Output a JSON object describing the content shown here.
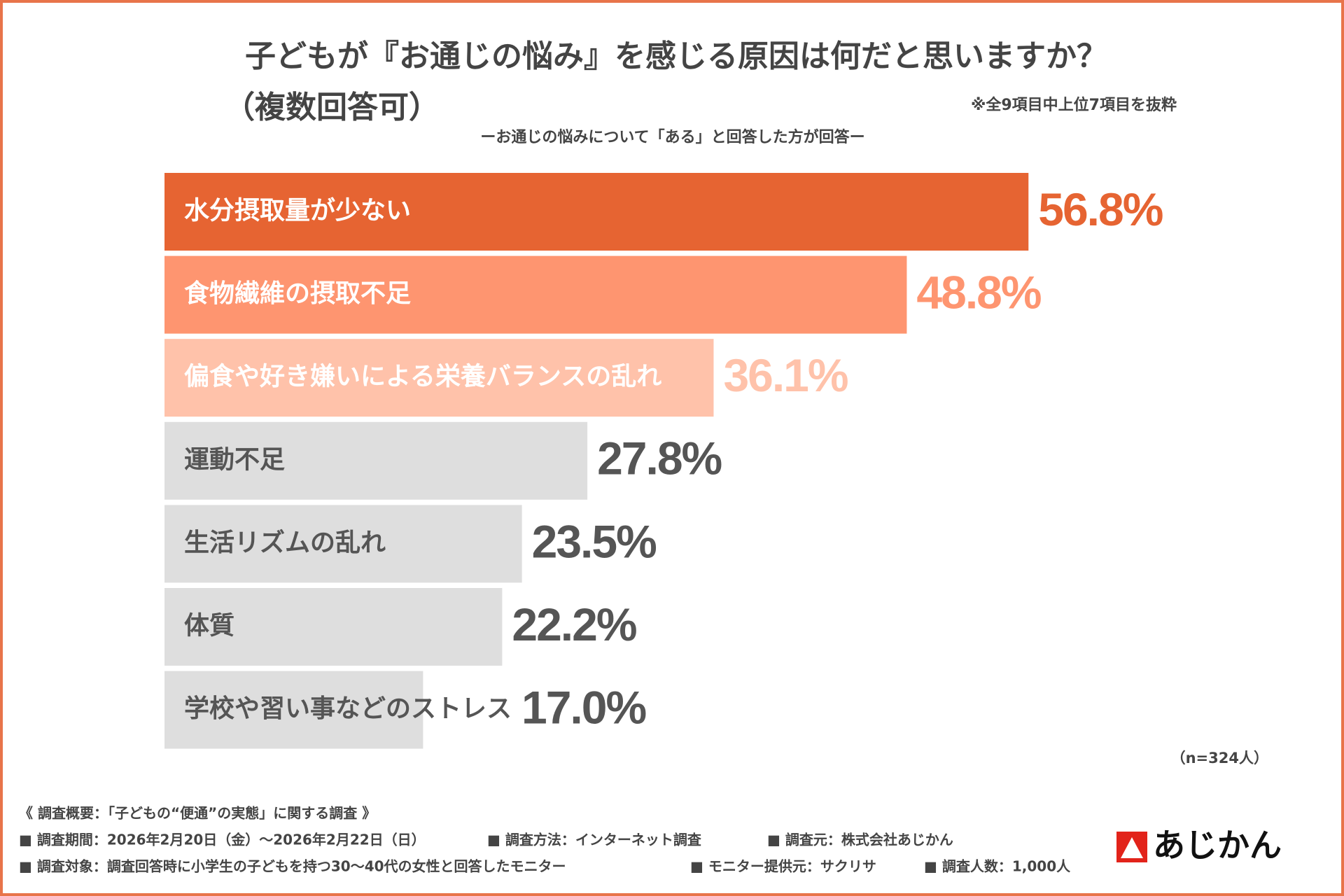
{
  "chart_data": {
    "type": "bar",
    "title": "子どもが『お通じの悩み』を感じる原因は何だと思いますか？",
    "title_sub": "（複数回答可）",
    "note": "※全9項目中上位7項目を抜粋",
    "subtitle": "ーお通じの悩みについて「ある」と回答した方が回答ー",
    "categories": [
      "水分摂取量が少ない",
      "食物繊維の摂取不足",
      "偏食や好き嫌いによる栄養バランスの乱れ",
      "運動不足",
      "生活リズムの乱れ",
      "体質",
      "学校や習い事などのストレス"
    ],
    "values": [
      56.8,
      48.8,
      36.1,
      27.8,
      23.5,
      22.2,
      17.0
    ],
    "value_labels": [
      "56.8%",
      "48.8%",
      "36.1%",
      "27.8%",
      "23.5%",
      "22.2%",
      "17.0%"
    ],
    "colors": [
      "#e66432",
      "#fe9570",
      "#ffc2aa",
      "#dedede",
      "#dedede",
      "#dedede",
      "#dedede"
    ],
    "label_colors": [
      "#ffffff",
      "#ffffff",
      "#ffffff",
      "#555555",
      "#555555",
      "#555555",
      "#555555"
    ],
    "value_label_colors": [
      "#e66432",
      "#fe9570",
      "#ffc2aa",
      "#555555",
      "#555555",
      "#555555",
      "#555555"
    ],
    "sample_note": "（n=324人）"
  },
  "footer": {
    "lines": [
      [
        "《 調査概要：「子どもの“便通”の実態」に関する調査 》"
      ],
      [
        "■ 調査期間：2026年2月20日（金）～2026年2月22日（日）",
        "■ 調査方法：インターネット調査",
        "■ 調査元：株式会社あじかん"
      ],
      [
        "■ 調査対象：調査回答時に小学生の子どもを持つ30～40代の女性と回答したモニター",
        "■ モニター提供元：サクリサ",
        "■ 調査人数：1,000人"
      ]
    ],
    "logo": "あじかん"
  }
}
